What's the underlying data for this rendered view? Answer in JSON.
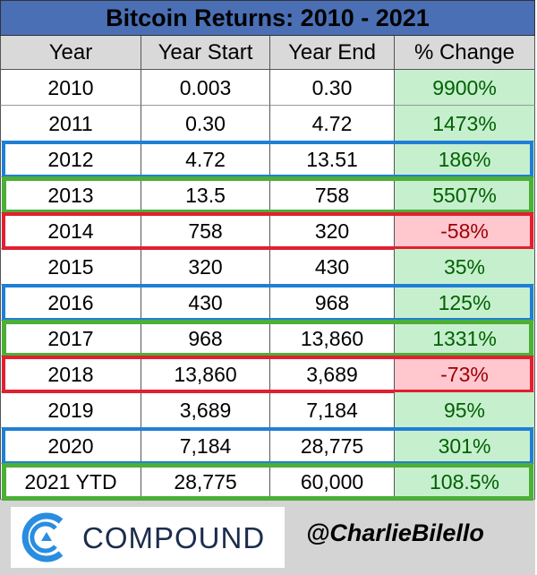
{
  "header": {
    "title": "Bitcoin Returns: 2010 - 2021"
  },
  "table": {
    "columns": [
      "Year",
      "Year Start",
      "Year End",
      "% Change"
    ],
    "rows": [
      [
        "2010",
        "0.003",
        "0.30",
        "9900%"
      ],
      [
        "2011",
        "0.30",
        "4.72",
        "1473%"
      ],
      [
        "2012",
        "4.72",
        "13.51",
        "186%"
      ],
      [
        "2013",
        "13.5",
        "758",
        "5507%"
      ],
      [
        "2014",
        "758",
        "320",
        "-58%"
      ],
      [
        "2015",
        "320",
        "430",
        "35%"
      ],
      [
        "2016",
        "430",
        "968",
        "125%"
      ],
      [
        "2017",
        "968",
        "13,860",
        "1331%"
      ],
      [
        "2018",
        "13,860",
        "3,689",
        "-73%"
      ],
      [
        "2019",
        "3,689",
        "7,184",
        "95%"
      ],
      [
        "2020",
        "7,184",
        "28,775",
        "301%"
      ],
      [
        "2021 YTD",
        "28,775",
        "60,000",
        "108.5%"
      ]
    ]
  },
  "footer": {
    "logo_text": "COMPOUND",
    "handle": "@CharlieBilello"
  }
}
